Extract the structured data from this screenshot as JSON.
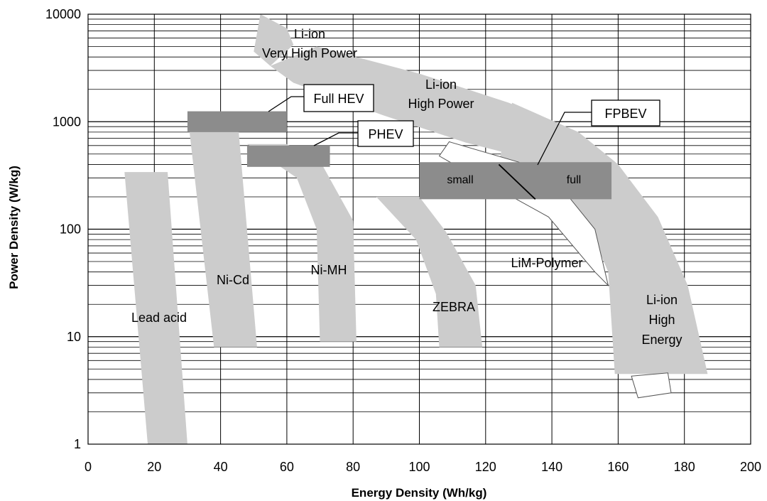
{
  "chart_data": {
    "type": "area",
    "title": "",
    "xlabel": "Energy Density (Wh/kg)",
    "ylabel": "Power Density (W/kg)",
    "xlim": [
      0,
      200
    ],
    "ylim": [
      1,
      10000
    ],
    "y_scale": "log",
    "grid": true,
    "x_ticks": [
      "0",
      "20",
      "40",
      "60",
      "80",
      "100",
      "120",
      "140",
      "160",
      "180",
      "200"
    ],
    "y_ticks": [
      "1",
      "10",
      "100",
      "1000",
      "10000"
    ],
    "regions": [
      {
        "name": "Lead acid",
        "polygon": [
          [
            11,
            340
          ],
          [
            24,
            340
          ],
          [
            30,
            1.0
          ],
          [
            18,
            1.0
          ]
        ]
      },
      {
        "name": "Ni-Cd",
        "polygon": [
          [
            30,
            1200
          ],
          [
            45,
            1200
          ],
          [
            51,
            8
          ],
          [
            38,
            8
          ]
        ]
      },
      {
        "name": "Ni-MH",
        "polygon": [
          [
            48,
            620
          ],
          [
            60,
            620
          ],
          [
            71,
            380
          ],
          [
            80,
            120
          ],
          [
            81,
            9
          ],
          [
            70,
            9
          ],
          [
            69,
            100
          ],
          [
            63,
            300
          ]
        ]
      },
      {
        "name": "ZEBRA",
        "polygon": [
          [
            87,
            200
          ],
          [
            100,
            200
          ],
          [
            108,
            95
          ],
          [
            117,
            30
          ],
          [
            119,
            8
          ],
          [
            106,
            8
          ],
          [
            105,
            25
          ],
          [
            99,
            80
          ]
        ]
      },
      {
        "name": "LiM-Polymer",
        "polygon": [
          [
            109,
            650
          ],
          [
            130,
            420
          ],
          [
            144,
            220
          ],
          [
            153,
            100
          ],
          [
            157,
            30
          ],
          [
            153,
            40
          ],
          [
            139,
            130
          ],
          [
            116,
            320
          ],
          [
            106,
            480
          ]
        ]
      },
      {
        "name": "Li-ion High Energy",
        "polygon": [
          [
            128,
            1500
          ],
          [
            148,
            800
          ],
          [
            160,
            400
          ],
          [
            172,
            130
          ],
          [
            181,
            30
          ],
          [
            187,
            4.5
          ],
          [
            159,
            4.5
          ],
          [
            157,
            40
          ],
          [
            150,
            130
          ],
          [
            140,
            260
          ],
          [
            124,
            420
          ]
        ]
      },
      {
        "name": "Li-ion High Power",
        "polygon": [
          [
            69,
            5000
          ],
          [
            100,
            2800
          ],
          [
            127,
            1500
          ],
          [
            148,
            800
          ],
          [
            160,
            400
          ],
          [
            152,
            320
          ],
          [
            136,
            430
          ],
          [
            114,
            640
          ],
          [
            89,
            1150
          ],
          [
            62,
            2300
          ],
          [
            55,
            3300
          ]
        ]
      },
      {
        "name": "Li-ion Very High Power",
        "polygon": [
          [
            52,
            10000
          ],
          [
            60,
            7400
          ],
          [
            62,
            5200
          ],
          [
            55,
            3300
          ],
          [
            50,
            4500
          ]
        ]
      },
      {
        "name": "Li-ion High Energy tail",
        "polygon": [
          [
            164,
            4.3
          ],
          [
            175,
            4.6
          ],
          [
            176,
            3.0
          ],
          [
            166,
            2.7
          ]
        ]
      }
    ],
    "target_boxes": [
      {
        "name": "Full HEV",
        "x": [
          30,
          60
        ],
        "y": [
          800,
          1250
        ]
      },
      {
        "name": "PHEV",
        "x": [
          48,
          73
        ],
        "y": [
          380,
          600
        ]
      },
      {
        "name": "FPBEV",
        "x": [
          100,
          158
        ],
        "y": [
          190,
          420
        ],
        "sublabels": [
          "small",
          "full"
        ],
        "divider": [
          [
            124,
            400
          ],
          [
            135,
            190
          ]
        ]
      }
    ]
  },
  "labels": {
    "lead_acid": "Lead acid",
    "ni_cd": "Ni-Cd",
    "ni_mh": "Ni-MH",
    "zebra": "ZEBRA",
    "lim_polymer": "LiM-Polymer",
    "li_ion_vhp_1": "Li-ion",
    "li_ion_vhp_2": "Very High Power",
    "li_ion_hp_1": "Li-ion",
    "li_ion_hp_2": "High Power",
    "li_ion_he_1": "Li-ion",
    "li_ion_he_2": "High",
    "li_ion_he_3": "Energy",
    "full_hev": "Full HEV",
    "phev": "PHEV",
    "fpbev": "FPBEV",
    "small": "small",
    "full": "full"
  },
  "colors": {
    "region_fill": "#cccccc",
    "box_fill": "#8c8c8c",
    "grid": "#000000",
    "background": "#ffffff"
  }
}
